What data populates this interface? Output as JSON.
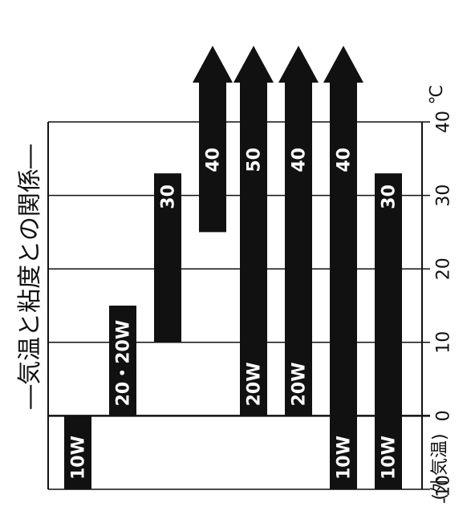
{
  "chart_data": {
    "type": "bar",
    "title": "―気温と粘度との関係―",
    "xlabel": "(外気温)",
    "unit": "℃",
    "xlim": [
      -10,
      40
    ],
    "tick_values": [
      -10,
      0,
      10,
      20,
      30,
      40
    ],
    "tick_labels": [
      "-10",
      "0",
      "10",
      "20",
      "30",
      "40"
    ],
    "grid": true,
    "series": [
      {
        "name": "10W",
        "label_top": "",
        "label_bottom": "10W",
        "start": -10,
        "end": 0,
        "arrow": false
      },
      {
        "name": "20・20W",
        "label_top": "",
        "label_bottom": "20・20W",
        "start": 0,
        "end": 15,
        "arrow": false
      },
      {
        "name": "30",
        "label_top": "30",
        "label_bottom": "",
        "start": 10,
        "end": 33,
        "arrow": false
      },
      {
        "name": "40",
        "label_top": "40",
        "label_bottom": "",
        "start": 25,
        "end": 40,
        "arrow": true
      },
      {
        "name": "20W 50",
        "label_top": "50",
        "label_bottom": "20W",
        "start": 0,
        "end": 40,
        "arrow": true
      },
      {
        "name": "20W 40",
        "label_top": "40",
        "label_bottom": "20W",
        "start": 0,
        "end": 40,
        "arrow": true
      },
      {
        "name": "10W 40",
        "label_top": "40",
        "label_bottom": "10W",
        "start": -10,
        "end": 40,
        "arrow": true
      },
      {
        "name": "10W 30",
        "label_top": "30",
        "label_bottom": "10W",
        "start": -10,
        "end": 33,
        "arrow": false
      }
    ]
  }
}
